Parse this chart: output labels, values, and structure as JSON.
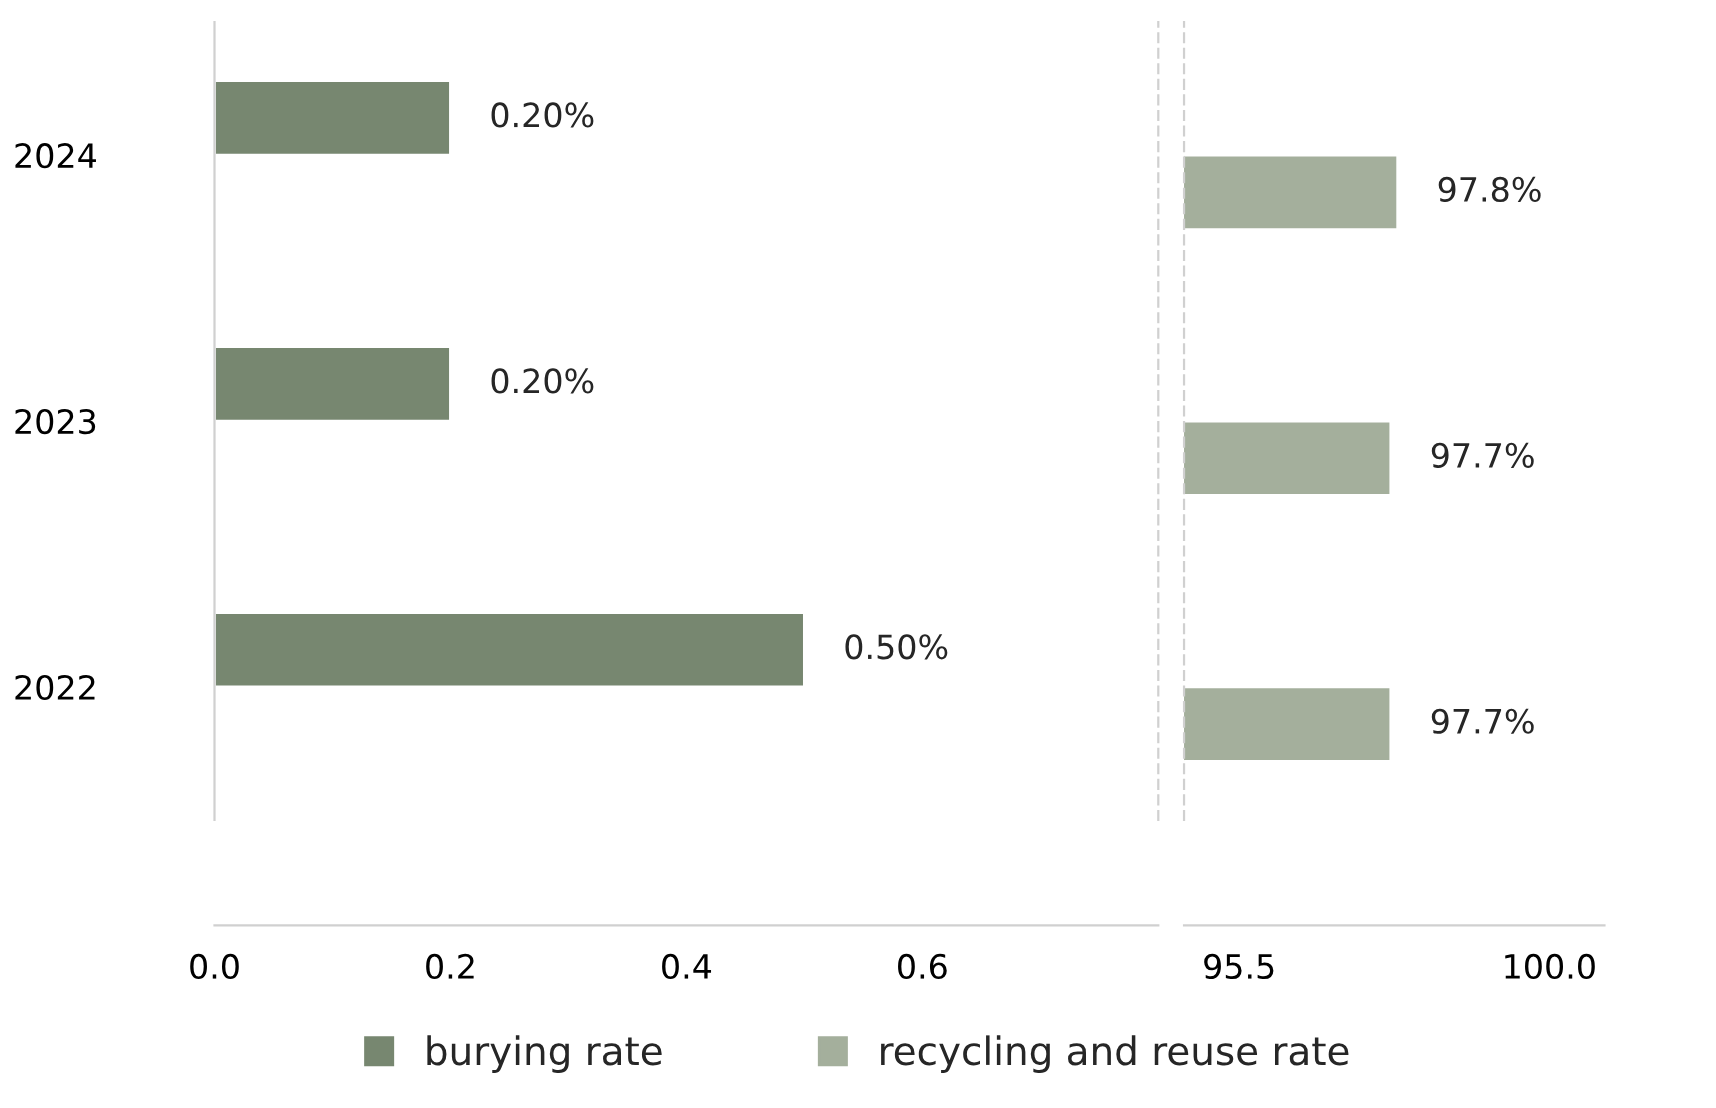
{
  "chart_data": [
    {
      "type": "bar",
      "orientation": "horizontal",
      "categories": [
        "2024",
        "2023",
        "2022"
      ],
      "series": [
        {
          "name": "burying rate",
          "color": "#778770",
          "values": [
            0.2,
            0.2,
            0.5
          ],
          "value_labels": [
            "0.20%",
            "0.20%",
            "0.50%"
          ]
        }
      ],
      "xlim": [
        0,
        0.8
      ],
      "xticks": [
        {
          "value": 0,
          "label": "0.0"
        },
        {
          "value": 0.2,
          "label": "0.2"
        },
        {
          "value": 0.4,
          "label": "0.4"
        },
        {
          "value": 0.6,
          "label": "0.6"
        }
      ],
      "legend": "bottom"
    },
    {
      "type": "bar",
      "orientation": "horizontal",
      "categories": [
        "2024",
        "2023",
        "2022"
      ],
      "series": [
        {
          "name": "recycling and reuse rate",
          "color": "#a4af9c",
          "values": [
            97.8,
            97.7,
            97.7
          ],
          "value_labels": [
            "97.8%",
            "97.7%",
            "97.7%"
          ]
        }
      ],
      "xlim": [
        94.7,
        100.8
      ],
      "xticks": [
        95.5,
        {
          "value": 100,
          "label": "100.0"
        }
      ],
      "tick_labels": "x",
      "legend": "bottom"
    }
  ]
}
